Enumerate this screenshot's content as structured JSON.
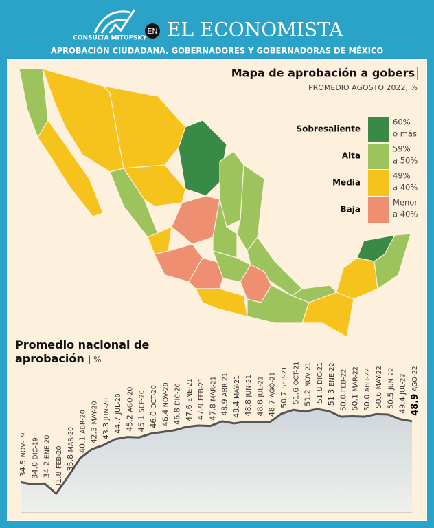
{
  "header": {
    "logo": "CONSULTA MITOFSKY",
    "connector": "EN",
    "brand": "EL ECONOMISTA",
    "subtitle": "APROBACIÓN CIUDADANA, GOBERNADORES Y GOBERNADORAS DE MÉXICO"
  },
  "map": {
    "title": "Mapa de aprobación a gobers",
    "subtitle": "PROMEDIO AGOSTO 2022, %",
    "legend": [
      {
        "label": "Sobresaliente",
        "range": [
          "60%",
          "o más"
        ],
        "color": "#3a8a47"
      },
      {
        "label": "Alta",
        "range": [
          "59%",
          "a 50%"
        ],
        "color": "#9dc45c"
      },
      {
        "label": "Media",
        "range": [
          "49%",
          "a 40%"
        ],
        "color": "#f6c21c"
      },
      {
        "label": "Baja",
        "range": [
          "Menor",
          "a 40%"
        ],
        "color": "#ee8f72"
      }
    ]
  },
  "chart_data": {
    "type": "line",
    "title": "Promedio nacional de aprobación",
    "unit": "%",
    "color": "#555555",
    "categories": [
      "NOV-19",
      "DIC-19",
      "ENE-20",
      "FEB-20",
      "MAR-20",
      "ABR-20",
      "MAY-20",
      "JUN-20",
      "JUL-20",
      "AGO-20",
      "SEP-20",
      "OCT-20",
      "NOV-20",
      "DIC-20",
      "ENE-21",
      "FEB-21",
      "MAR-21",
      "ABR-21",
      "MAY-21",
      "JUN-21",
      "JUL-21",
      "AGO-21",
      "SEP-21",
      "OCT-21",
      "NOV-21",
      "DIC-21",
      "ENE-22",
      "FEB-22",
      "MAR-22",
      "ABR-22",
      "MAY-22",
      "JUN-22",
      "JUL-22",
      "AGO-22"
    ],
    "values": [
      34.5,
      34.0,
      34.2,
      31.8,
      35.8,
      40.1,
      42.3,
      43.3,
      44.7,
      45.2,
      45.1,
      46.0,
      46.4,
      46.8,
      47.6,
      47.9,
      47.8,
      48.9,
      48.4,
      48.8,
      48.8,
      48.7,
      50.7,
      51.6,
      51.2,
      51.8,
      51.3,
      50.0,
      50.1,
      50.0,
      50.6,
      50.5,
      49.4,
      48.9
    ],
    "value_labels": [
      "34.5",
      "34.0",
      "34.2",
      "31.8",
      "35.8",
      "40.1",
      "42.3",
      "43.3",
      "44.7",
      "45.2",
      "45.1",
      "46.0",
      "46.4",
      "46.8",
      "47.6",
      "47.9",
      "47.8",
      "48.9",
      "48.4",
      "48.8",
      "48.8",
      "48.7",
      "50.7",
      "51.6",
      "51.2",
      "51.8",
      "51.3",
      "50.0",
      "50.1",
      "50.0",
      "50.6",
      "50.5",
      "49.4",
      "48.9"
    ]
  }
}
